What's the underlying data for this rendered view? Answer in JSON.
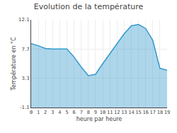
{
  "chart_data": {
    "type": "area",
    "title": "Evolution de la température",
    "xlabel": "heure par heure",
    "ylabel": "Température en °C",
    "x": [
      0,
      1,
      2,
      3,
      4,
      5,
      6,
      7,
      8,
      9,
      10,
      11,
      12,
      13,
      14,
      15,
      16,
      17,
      18,
      19
    ],
    "values": [
      8.5,
      8.2,
      7.8,
      7.7,
      7.7,
      7.7,
      6.5,
      5.0,
      3.7,
      3.9,
      5.5,
      7.0,
      8.5,
      10.0,
      11.2,
      11.4,
      10.8,
      9.0,
      4.8,
      4.5
    ],
    "color": "#3399cc",
    "xlim": [
      0,
      19
    ],
    "xticks": [
      0,
      1,
      2,
      3,
      4,
      5,
      6,
      7,
      8,
      9,
      10,
      11,
      12,
      13,
      14,
      15,
      16,
      17,
      18,
      19
    ],
    "ylim": [
      -1.1,
      12.1
    ],
    "yticks": [
      -1.1,
      3.3,
      7.7,
      12.1
    ],
    "grid": true
  }
}
